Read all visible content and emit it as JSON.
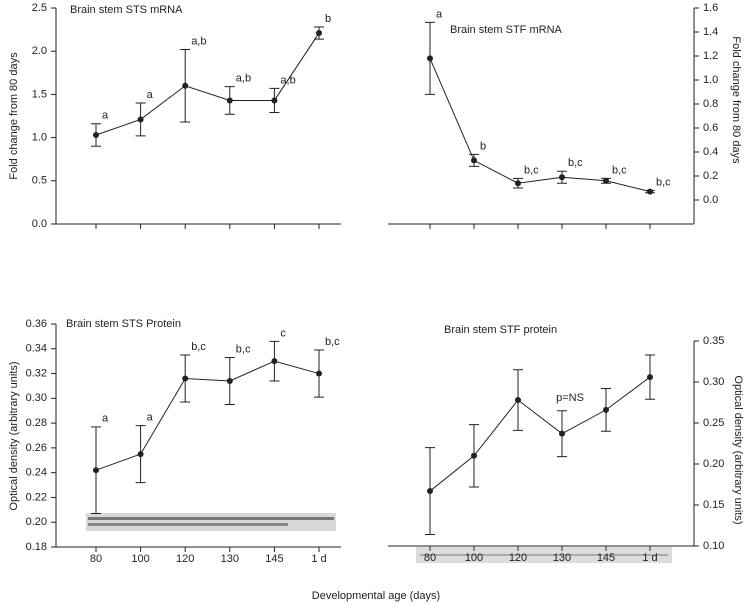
{
  "xlabel": "Developmental age (days)",
  "chart_data": [
    {
      "type": "line",
      "title": "Brain stem STS mRNA",
      "ylabel": "Fold change from 80 days",
      "axis_side": "left",
      "color": "#222222",
      "values": [
        1.03,
        1.21,
        1.6,
        1.43,
        1.43,
        2.21
      ],
      "errors": [
        0.13,
        0.19,
        0.42,
        0.16,
        0.14,
        0.07
      ],
      "labels": [
        "a",
        "a",
        "a,b",
        "a,b",
        "a,b",
        "b"
      ],
      "ylim": [
        0,
        2.5
      ],
      "yticks": [
        {
          "value": 0,
          "label": "0.0"
        },
        0.5,
        {
          "value": 1,
          "label": "1.0"
        },
        1.5,
        {
          "value": 2,
          "label": "2.0"
        },
        2.5
      ]
    },
    {
      "type": "line",
      "title": "Brain stem STF mRNA",
      "ylabel": "Fold change from 80 days",
      "axis_side": "right",
      "color": "#222222",
      "values": [
        1.18,
        0.33,
        0.14,
        0.19,
        0.16,
        0.07
      ],
      "errors": [
        0.3,
        0.05,
        0.04,
        0.05,
        0.02,
        0.01
      ],
      "labels": [
        "a",
        "b",
        "b,c",
        "b,c",
        "b,c",
        "b,c"
      ],
      "ylim": [
        -0.2,
        1.6
      ],
      "yticks": [
        {
          "value": 0,
          "label": "0.0"
        },
        0.2,
        0.4,
        0.6,
        0.8,
        {
          "value": 1,
          "label": "1.0"
        },
        1.2,
        1.4,
        1.6
      ]
    },
    {
      "type": "line",
      "title": "Brain stem STS Protein",
      "ylabel": "Optical density (arbitrary units)",
      "axis_side": "left",
      "color": "#222222",
      "categories": [
        "80",
        "100",
        "120",
        "130",
        "145",
        "1 d"
      ],
      "values": [
        0.242,
        0.255,
        0.316,
        0.314,
        0.33,
        0.32
      ],
      "errors": [
        0.035,
        0.023,
        0.019,
        0.019,
        0.016,
        0.019
      ],
      "labels": [
        "a",
        "a",
        "b,c",
        "b,c",
        "c",
        "b,c"
      ],
      "ylim": [
        0.18,
        0.36
      ],
      "yticks": [
        0.18,
        {
          "value": 0.2,
          "label": "0.20"
        },
        0.22,
        0.24,
        0.26,
        0.28,
        {
          "value": 0.3,
          "label": "0.30"
        },
        0.32,
        0.34,
        0.36
      ]
    },
    {
      "type": "line",
      "title": "Brain stem STF protein",
      "ylabel": "Optical density (arbitrary units)",
      "axis_side": "right",
      "color": "#222222",
      "annotation": "p=NS",
      "categories": [
        "80",
        "100",
        "120",
        "130",
        "145",
        "1 d"
      ],
      "values": [
        0.167,
        0.21,
        0.278,
        0.237,
        0.266,
        0.306
      ],
      "errors": [
        0.053,
        0.038,
        0.037,
        0.028,
        0.026,
        0.027
      ],
      "ylim": [
        0.1,
        0.35
      ],
      "yticks": [
        {
          "value": 0.1,
          "label": "0.10"
        },
        0.15,
        {
          "value": 0.2,
          "label": "0.20"
        },
        0.25,
        {
          "value": 0.3,
          "label": "0.30"
        },
        0.35
      ]
    }
  ]
}
